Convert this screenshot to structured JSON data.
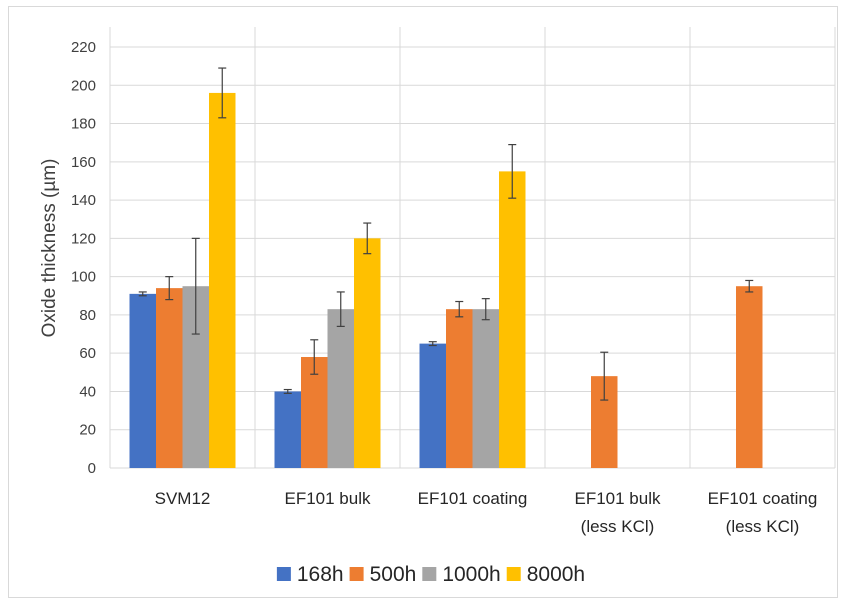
{
  "chart_data": {
    "type": "bar",
    "title": "",
    "xlabel": "",
    "ylabel": "Oxide thickness (µm)",
    "ylim": [
      0,
      220
    ],
    "yticks": [
      0,
      20,
      40,
      60,
      80,
      100,
      120,
      140,
      160,
      180,
      200,
      220
    ],
    "grid": true,
    "legend_position": "bottom",
    "categories": [
      [
        "SVM12"
      ],
      [
        "EF101 bulk"
      ],
      [
        "EF101 coating"
      ],
      [
        "EF101 bulk",
        "(less KCl)"
      ],
      [
        "EF101 coating",
        "(less KCl)"
      ]
    ],
    "series": [
      {
        "name": "168h",
        "color": "#4472c4",
        "values": [
          91,
          40,
          65,
          null,
          null
        ],
        "errors": [
          1,
          1,
          1,
          null,
          null
        ]
      },
      {
        "name": "500h",
        "color": "#ed7d31",
        "values": [
          94,
          58,
          83,
          48,
          95
        ],
        "errors": [
          6,
          9,
          4,
          12.5,
          3
        ]
      },
      {
        "name": "1000h",
        "color": "#a5a5a5",
        "values": [
          95,
          83,
          83,
          null,
          null
        ],
        "errors": [
          25,
          9,
          5.5,
          null,
          null
        ]
      },
      {
        "name": "8000h",
        "color": "#ffc000",
        "values": [
          196,
          120,
          155,
          null,
          null
        ],
        "errors": [
          13,
          8,
          14,
          null,
          null
        ]
      }
    ]
  }
}
